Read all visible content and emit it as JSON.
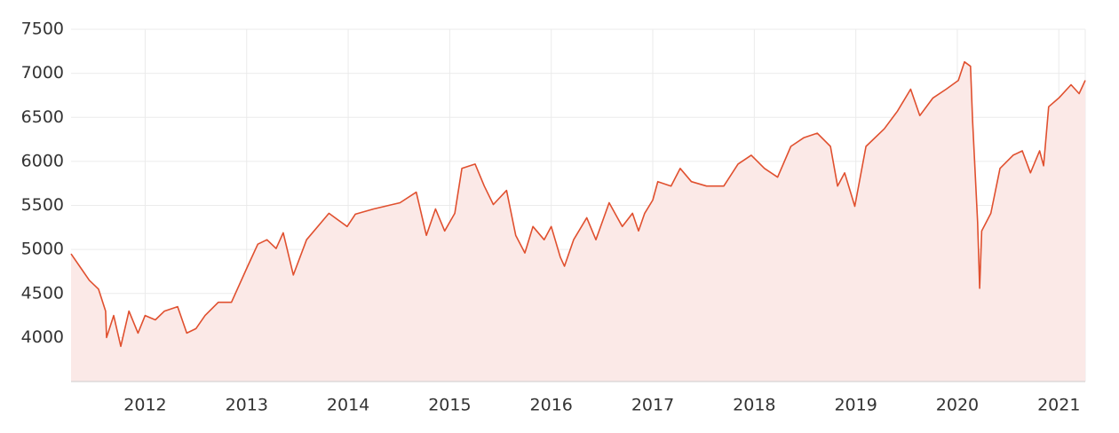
{
  "chart_data": {
    "type": "line",
    "color": "#e0502f",
    "fill": "#fbe9e7",
    "grid": true,
    "x": [
      2011.27,
      2011.36,
      2011.45,
      2011.54,
      2011.61,
      2011.62,
      2011.69,
      2011.76,
      2011.84,
      2011.93,
      2012.0,
      2012.1,
      2012.19,
      2012.32,
      2012.41,
      2012.5,
      2012.59,
      2012.72,
      2012.85,
      2013.01,
      2013.11,
      2013.2,
      2013.29,
      2013.36,
      2013.46,
      2013.59,
      2013.81,
      2013.99,
      2014.07,
      2014.25,
      2014.51,
      2014.67,
      2014.77,
      2014.86,
      2014.95,
      2015.05,
      2015.12,
      2015.25,
      2015.34,
      2015.43,
      2015.56,
      2015.65,
      2015.74,
      2015.82,
      2015.93,
      2016.0,
      2016.09,
      2016.13,
      2016.22,
      2016.35,
      2016.44,
      2016.57,
      2016.7,
      2016.8,
      2016.86,
      2016.92,
      2017.0,
      2017.05,
      2017.18,
      2017.27,
      2017.38,
      2017.53,
      2017.7,
      2017.84,
      2017.97,
      2018.1,
      2018.23,
      2018.36,
      2018.49,
      2018.62,
      2018.75,
      2018.82,
      2018.89,
      2018.99,
      2019.1,
      2019.28,
      2019.41,
      2019.54,
      2019.63,
      2019.76,
      2019.89,
      2020.01,
      2020.07,
      2020.13,
      2020.15,
      2020.2,
      2020.22,
      2020.24,
      2020.33,
      2020.42,
      2020.55,
      2020.64,
      2020.72,
      2020.81,
      2020.85,
      2020.9,
      2021.0,
      2021.12,
      2021.2,
      2021.26
    ],
    "values": [
      4950,
      4800,
      4650,
      4550,
      4300,
      4000,
      4250,
      3900,
      4300,
      4050,
      4250,
      4200,
      4300,
      4350,
      4050,
      4100,
      4250,
      4400,
      4400,
      4810,
      5060,
      5110,
      5010,
      5190,
      4710,
      5110,
      5410,
      5260,
      5400,
      5460,
      5530,
      5650,
      5160,
      5460,
      5210,
      5410,
      5920,
      5970,
      5720,
      5510,
      5670,
      5160,
      4960,
      5260,
      5110,
      5260,
      4910,
      4810,
      5110,
      5360,
      5110,
      5530,
      5260,
      5410,
      5210,
      5410,
      5560,
      5770,
      5720,
      5920,
      5770,
      5720,
      5720,
      5970,
      6070,
      5920,
      5820,
      6170,
      6270,
      6320,
      6170,
      5720,
      5870,
      5490,
      6170,
      6370,
      6570,
      6820,
      6520,
      6720,
      6820,
      6920,
      7130,
      7080,
      6470,
      5310,
      4560,
      5210,
      5410,
      5920,
      6070,
      6120,
      5870,
      6120,
      5950,
      6620,
      6720,
      6870,
      6770,
      6920
    ],
    "xlim": [
      2011.27,
      2021.26
    ],
    "xticks": [
      2012,
      2013,
      2014,
      2015,
      2016,
      2017,
      2018,
      2019,
      2020,
      2021
    ],
    "ylim": [
      3500,
      7500
    ],
    "yticks": [
      4000,
      4500,
      5000,
      5500,
      6000,
      6500,
      7000,
      7500
    ]
  }
}
